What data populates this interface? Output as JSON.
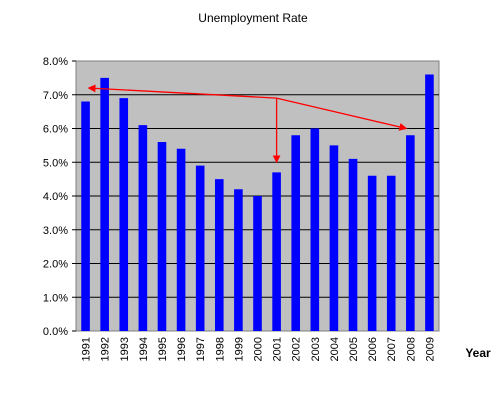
{
  "chart_data": {
    "type": "bar",
    "title": "Unemployment Rate",
    "xlabel": "Year",
    "ylabel": "",
    "ylim": [
      0,
      8
    ],
    "yticks": [
      "0.0%",
      "1.0%",
      "2.0%",
      "3.0%",
      "4.0%",
      "5.0%",
      "6.0%",
      "7.0%",
      "8.0%"
    ],
    "grid": true,
    "legend": "none",
    "bar_color": "#0000ff",
    "plot_background": "#c0c0c0",
    "annotation_color": "#ff0000",
    "categories": [
      "1991",
      "1992",
      "1993",
      "1994",
      "1995",
      "1996",
      "1997",
      "1998",
      "1999",
      "2000",
      "2001",
      "2002",
      "2003",
      "2004",
      "2005",
      "2006",
      "2007",
      "2008",
      "2009"
    ],
    "values": [
      6.8,
      7.5,
      6.9,
      6.1,
      5.6,
      5.4,
      4.9,
      4.5,
      4.2,
      4.0,
      4.7,
      5.8,
      6.0,
      5.5,
      5.1,
      4.6,
      4.6,
      5.8,
      7.6
    ],
    "annotations": [
      {
        "type": "arrow",
        "from": {
          "x": "2001",
          "y": 6.9
        },
        "to": {
          "x": "1991",
          "y": 7.2
        }
      },
      {
        "type": "arrow",
        "from": {
          "x": "2001",
          "y": 6.9
        },
        "to": {
          "x": "2001",
          "y": 5.0
        }
      },
      {
        "type": "arrow",
        "from": {
          "x": "2001",
          "y": 6.9
        },
        "to": {
          "x": "2008",
          "y": 6.0
        }
      }
    ]
  }
}
